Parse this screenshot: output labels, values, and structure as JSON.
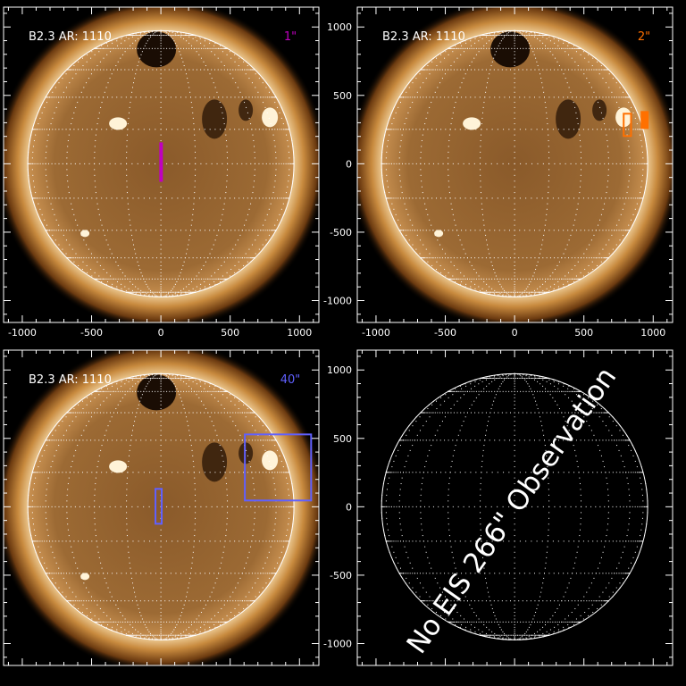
{
  "chart_data": [
    {
      "type": "image",
      "label": "B2.3 AR: 1110",
      "resolution_label": "1\"",
      "resolution_color": "#c000c0",
      "xlim": [
        -1135,
        1140
      ],
      "ylim": [
        -1160,
        1145
      ],
      "xticks": [
        -1000,
        -500,
        0,
        500,
        1000
      ],
      "yticks": [
        1000,
        500,
        0,
        -500,
        -1000
      ],
      "show_x_labels": true,
      "show_y_labels": false,
      "sun_image": true,
      "boxes": [
        {
          "x": [
            -5,
            5
          ],
          "y": [
            -125,
            150
          ],
          "color": "#c000c0",
          "fill": true
        }
      ]
    },
    {
      "type": "image",
      "label": "B2.3 AR: 1110",
      "resolution_label": "2\"",
      "resolution_color": "#ff7000",
      "xlim": [
        -1135,
        1140
      ],
      "ylim": [
        -1160,
        1145
      ],
      "xticks": [
        -1000,
        -500,
        0,
        500,
        1000
      ],
      "yticks": [
        1000,
        500,
        0,
        -500,
        -1000
      ],
      "show_x_labels": true,
      "show_y_labels": true,
      "sun_image": true,
      "boxes": [
        {
          "x": [
            787,
            840
          ],
          "y": [
            203,
            366
          ],
          "color": "#ff7000",
          "fill": false
        },
        {
          "x": [
            916,
            961
          ],
          "y": [
            261,
            379
          ],
          "color": "#ff7000",
          "fill": true
        }
      ]
    },
    {
      "type": "image",
      "label": "B2.3 AR: 1110",
      "resolution_label": "40\"",
      "resolution_color": "#6060ff",
      "xlim": [
        -1135,
        1140
      ],
      "ylim": [
        -1160,
        1145
      ],
      "xticks": [
        -1000,
        -500,
        0,
        500,
        1000
      ],
      "yticks": [
        1000,
        500,
        0,
        -500,
        -1000
      ],
      "show_x_labels": false,
      "show_y_labels": false,
      "sun_image": true,
      "boxes": [
        {
          "x": [
            -39,
            6
          ],
          "y": [
            -124,
            131
          ],
          "color": "#6060ff",
          "fill": false
        },
        {
          "x": [
            606,
            1084
          ],
          "y": [
            46,
            529
          ],
          "color": "#6060ff",
          "fill": false
        }
      ]
    },
    {
      "type": "image",
      "label": "",
      "xlim": [
        -1135,
        1140
      ],
      "ylim": [
        -1160,
        1145
      ],
      "xticks": [
        -1000,
        -500,
        0,
        500,
        1000
      ],
      "yticks": [
        1000,
        500,
        0,
        -500,
        -1000
      ],
      "show_x_labels": false,
      "show_y_labels": true,
      "sun_image": false,
      "annotation": "No EIS 266\" Observation",
      "boxes": []
    }
  ]
}
